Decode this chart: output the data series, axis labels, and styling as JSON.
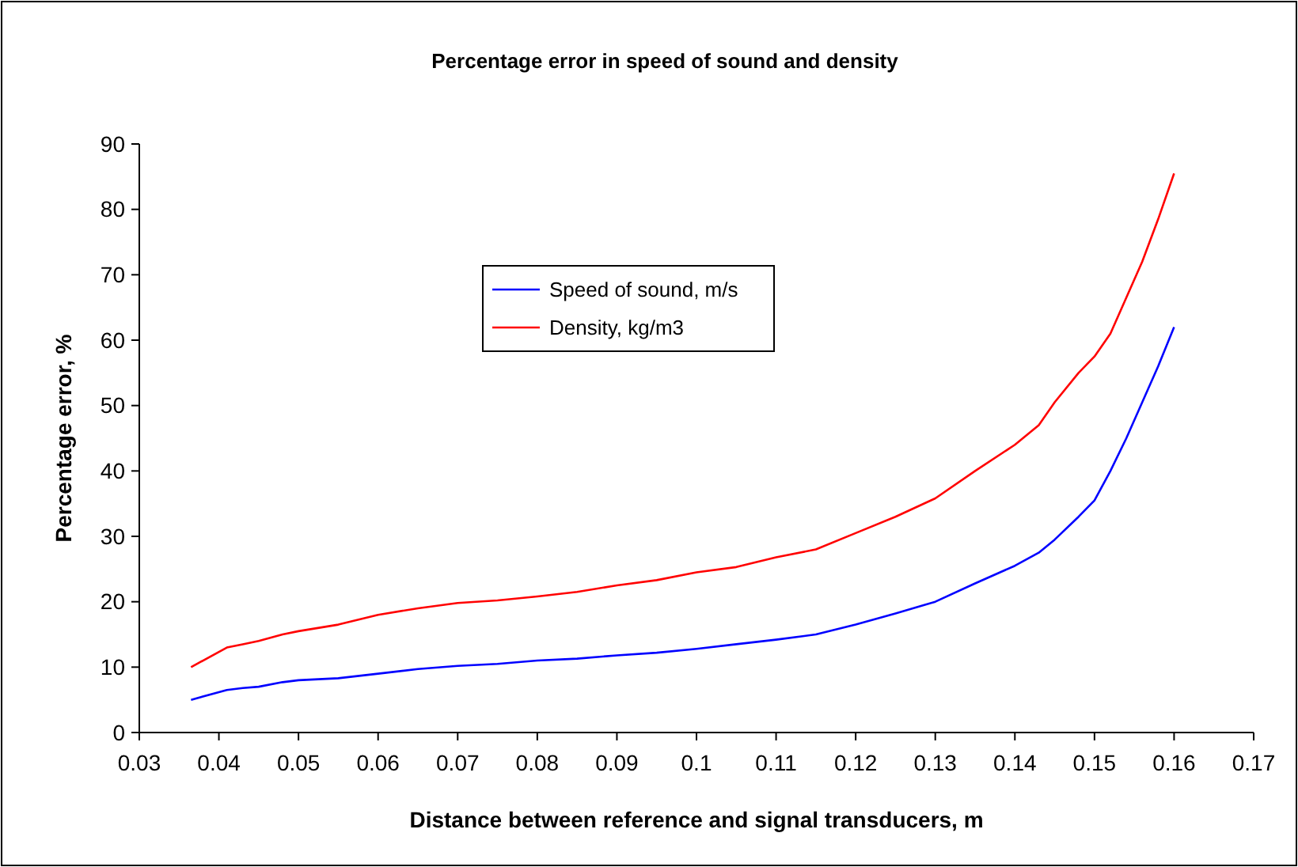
{
  "chart_data": {
    "type": "line",
    "title": "Percentage error in speed of sound and density",
    "xlabel": "Distance between reference and signal transducers, m",
    "ylabel": "Percentage error, %",
    "x": [
      0.0365,
      0.041,
      0.043,
      0.045,
      0.048,
      0.05,
      0.055,
      0.06,
      0.065,
      0.07,
      0.075,
      0.08,
      0.085,
      0.09,
      0.095,
      0.1,
      0.105,
      0.11,
      0.115,
      0.12,
      0.125,
      0.13,
      0.135,
      0.14,
      0.143,
      0.145,
      0.148,
      0.15,
      0.152,
      0.154,
      0.156,
      0.158,
      0.16
    ],
    "series": [
      {
        "name": "Speed of sound, m/s",
        "color": "#0000ff",
        "values": [
          5,
          6.5,
          6.8,
          7,
          7.7,
          8,
          8.3,
          9,
          9.7,
          10.2,
          10.5,
          11,
          11.3,
          11.8,
          12.2,
          12.8,
          13.5,
          14.2,
          15,
          16.5,
          18.2,
          20,
          22.8,
          25.5,
          27.5,
          29.5,
          33,
          35.5,
          40,
          45,
          50.5,
          56,
          62
        ]
      },
      {
        "name": "Density, kg/m3",
        "color": "#ff0000",
        "values": [
          10,
          13,
          13.5,
          14,
          15,
          15.5,
          16.5,
          18,
          19,
          19.8,
          20.2,
          20.8,
          21.5,
          22.5,
          23.3,
          24.5,
          25.3,
          26.8,
          28,
          30.5,
          33,
          35.8,
          40,
          44,
          47,
          50.5,
          55,
          57.5,
          61,
          66.5,
          72,
          78.5,
          85.5
        ]
      }
    ],
    "xlim": [
      0.03,
      0.17
    ],
    "xticks": [
      {
        "value": 0.03,
        "label": "0.03"
      },
      {
        "value": 0.04,
        "label": "0.04"
      },
      {
        "value": 0.05,
        "label": "0.05"
      },
      {
        "value": 0.06,
        "label": "0.06"
      },
      {
        "value": 0.07,
        "label": "0.07"
      },
      {
        "value": 0.08,
        "label": "0.08"
      },
      {
        "value": 0.09,
        "label": "0.09"
      },
      {
        "value": 0.1,
        "label": "0.1"
      },
      {
        "value": 0.11,
        "label": "0.11"
      },
      {
        "value": 0.12,
        "label": "0.12"
      },
      {
        "value": 0.13,
        "label": "0.13"
      },
      {
        "value": 0.14,
        "label": "0.14"
      },
      {
        "value": 0.15,
        "label": "0.15"
      },
      {
        "value": 0.16,
        "label": "0.16"
      },
      {
        "value": 0.17,
        "label": "0.17"
      }
    ],
    "ylim": [
      0,
      90
    ],
    "yticks": [
      0,
      10,
      20,
      30,
      40,
      50,
      60,
      70,
      80,
      90
    ],
    "legend": "top",
    "grid": false,
    "marker": "none",
    "line_style": "solid"
  }
}
